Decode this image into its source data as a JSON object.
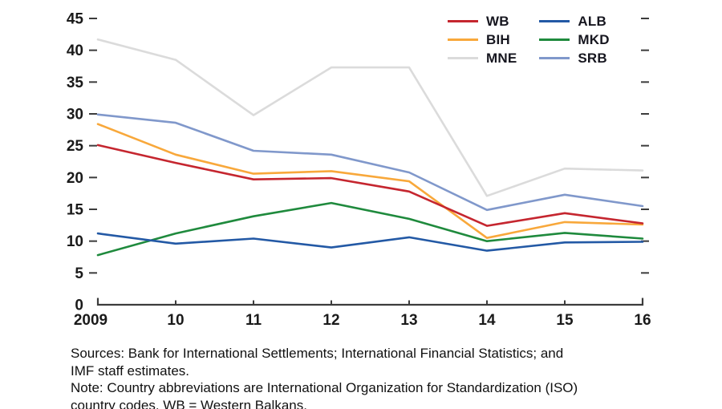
{
  "chart_data": {
    "type": "line",
    "title": "",
    "xlabel": "",
    "ylabel": "",
    "x_labels": [
      "2009",
      "10",
      "11",
      "12",
      "13",
      "14",
      "15",
      "16"
    ],
    "ylim": [
      0,
      45
    ],
    "yticks": [
      0,
      5,
      10,
      15,
      20,
      25,
      30,
      35,
      40,
      45
    ],
    "grid": "off",
    "legend_position": "top-right-inside",
    "axis_color": "#3c3c3c",
    "z_order": [
      2,
      5,
      1,
      0,
      4,
      3
    ],
    "series": [
      {
        "name": "WB",
        "color": "#C5262F",
        "values": [
          25.1,
          22.3,
          19.7,
          19.9,
          17.8,
          12.4,
          14.4,
          12.8
        ]
      },
      {
        "name": "BIH",
        "color": "#F8A83B",
        "values": [
          28.4,
          23.6,
          20.6,
          21.0,
          19.4,
          10.5,
          13.0,
          12.6
        ]
      },
      {
        "name": "MNE",
        "color": "#DBDBDB",
        "values": [
          41.7,
          38.5,
          29.8,
          37.3,
          37.3,
          17.1,
          21.4,
          21.1
        ]
      },
      {
        "name": "ALB",
        "color": "#2359A5",
        "values": [
          11.2,
          9.6,
          10.4,
          9.0,
          10.6,
          8.5,
          9.8,
          9.9
        ]
      },
      {
        "name": "MKD",
        "color": "#1F8A3D",
        "values": [
          7.8,
          11.2,
          13.9,
          16.0,
          13.5,
          10.0,
          11.3,
          10.4
        ]
      },
      {
        "name": "SRB",
        "color": "#8098CB",
        "values": [
          29.9,
          28.6,
          24.2,
          23.6,
          20.8,
          14.9,
          17.3,
          15.5
        ]
      }
    ]
  },
  "footer": {
    "lines": [
      "Sources: Bank for International Settlements; International Financial Statistics; and",
      "IMF staff estimates.",
      "Note: Country abbreviations are International Organization for Standardization (ISO)",
      "country codes. WB = Western Balkans."
    ]
  }
}
